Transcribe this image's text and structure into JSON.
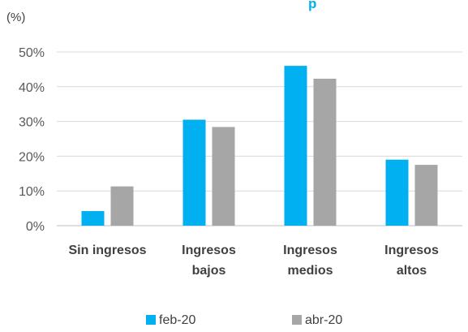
{
  "chart_data": {
    "type": "bar",
    "title_fragment": "p",
    "unit_label": "(%)",
    "categories": [
      [
        "Sin ingresos"
      ],
      [
        "Ingresos",
        "bajos"
      ],
      [
        "Ingresos",
        "medios"
      ],
      [
        "Ingresos",
        "altos"
      ]
    ],
    "series": [
      {
        "name": "feb-20",
        "color": "#00B0F0",
        "values": [
          4.2,
          30.5,
          46.0,
          19.0
        ]
      },
      {
        "name": "abr-20",
        "color": "#A6A6A6",
        "values": [
          11.3,
          28.4,
          42.3,
          17.5
        ]
      }
    ],
    "ylim": [
      0,
      50
    ],
    "yticks": [
      "0%",
      "10%",
      "20%",
      "30%",
      "40%",
      "50%"
    ],
    "grid": true,
    "legend_position": "bottom"
  }
}
